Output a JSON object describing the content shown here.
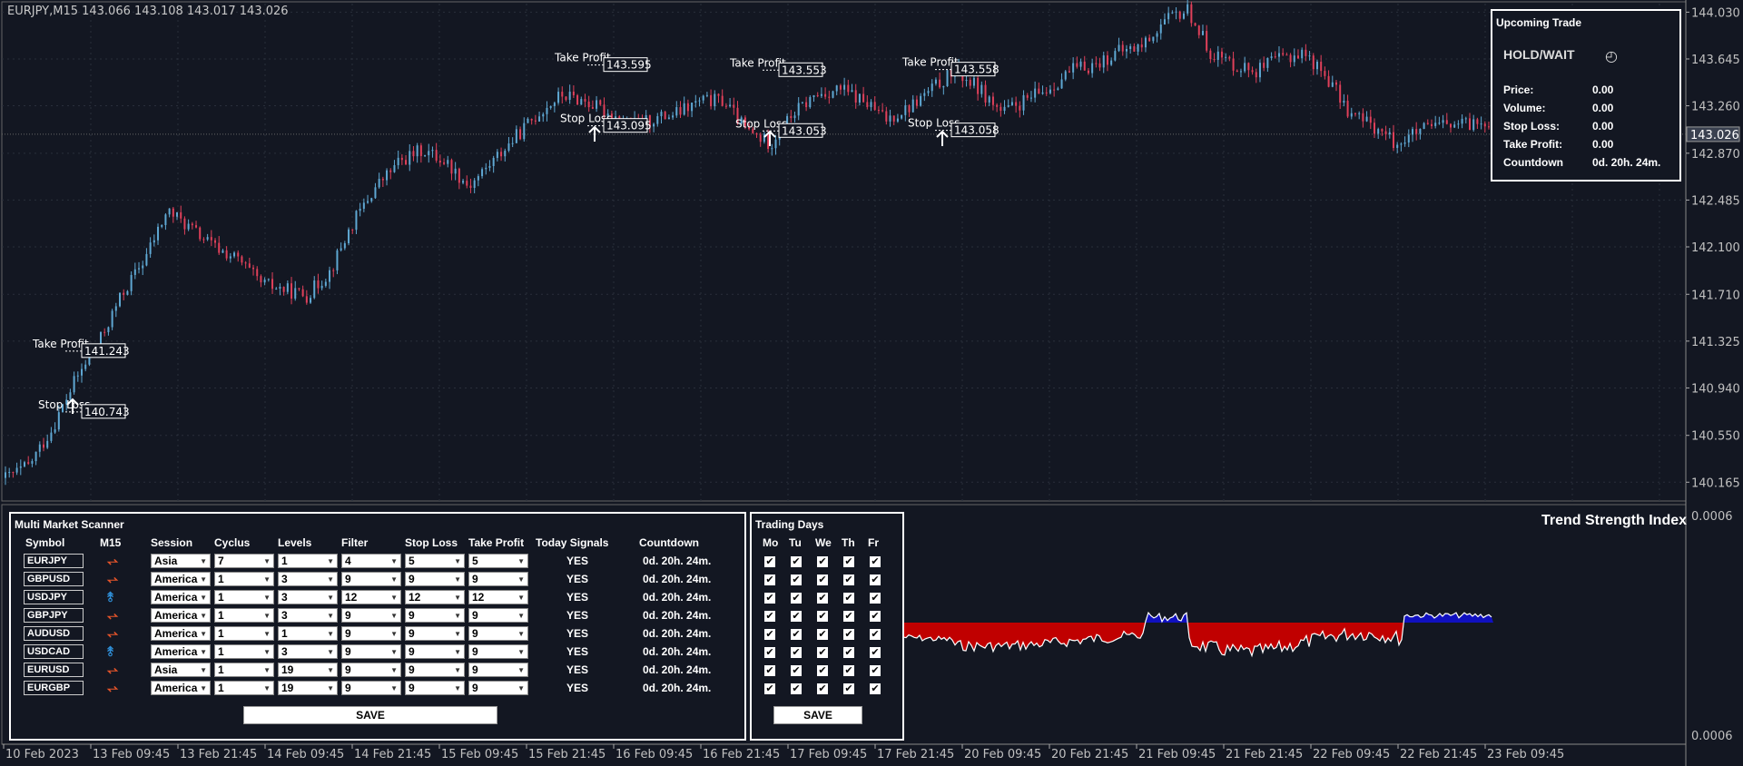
{
  "window": {
    "title": "EURJPY,M15  143.066 143.108 143.017 143.026"
  },
  "colors": {
    "background": "#131722",
    "bull": "#5fa8d3",
    "bear": "#e0405a",
    "tsi_neg": "#c00000",
    "tsi_pos": "#1010c0"
  },
  "price_axis": {
    "labels": [
      "144.030",
      "143.645",
      "143.260",
      "142.870",
      "142.485",
      "142.100",
      "141.710",
      "141.325",
      "140.940",
      "140.550",
      "140.165"
    ],
    "current_price": "143.026"
  },
  "indicator_axis": {
    "top": "0.0006",
    "bottom": "0.0006"
  },
  "time_axis": {
    "labels": [
      "10 Feb 2023",
      "13 Feb 09:45",
      "13 Feb 21:45",
      "14 Feb 09:45",
      "14 Feb 21:45",
      "15 Feb 09:45",
      "15 Feb 21:45",
      "16 Feb 09:45",
      "16 Feb 21:45",
      "17 Feb 09:45",
      "17 Feb 21:45",
      "20 Feb 09:45",
      "20 Feb 21:45",
      "21 Feb 09:45",
      "21 Feb 21:45",
      "22 Feb 09:45",
      "22 Feb 21:45",
      "23 Feb 09:45"
    ]
  },
  "chart_data": {
    "type": "candlestick",
    "symbol": "EURJPY",
    "timeframe": "M15",
    "ylim": [
      140.1,
      144.1
    ],
    "path_close": [
      140.2,
      140.3,
      140.6,
      141.0,
      141.3,
      141.7,
      142.0,
      142.4,
      142.25,
      142.1,
      142.0,
      141.8,
      141.75,
      141.7,
      141.9,
      142.3,
      142.6,
      142.8,
      142.9,
      142.8,
      142.6,
      142.8,
      143.0,
      143.2,
      143.35,
      143.3,
      143.2,
      143.1,
      143.15,
      143.2,
      143.3,
      143.3,
      143.05,
      142.95,
      143.2,
      143.35,
      143.4,
      143.3,
      143.15,
      143.25,
      143.4,
      143.55,
      143.4,
      143.2,
      143.3,
      143.4,
      143.55,
      143.6,
      143.7,
      143.75,
      143.95,
      144.05,
      143.7,
      143.6,
      143.55,
      143.65,
      143.7,
      143.5,
      143.2,
      143.1,
      142.95,
      143.05,
      143.1,
      143.1,
      143.15
    ]
  },
  "trade_markers": [
    {
      "take_profit_label": "Take Profit",
      "take_profit": "141.243",
      "stop_loss_label": "Stop Loss",
      "stop_loss": "140.743"
    },
    {
      "take_profit_label": "Take Profit",
      "take_profit": "143.595",
      "stop_loss_label": "Stop Loss",
      "stop_loss": "143.095"
    },
    {
      "take_profit_label": "Take Profit",
      "take_profit": "143.553",
      "stop_loss_label": "Stop Loss",
      "stop_loss": "143.053"
    },
    {
      "take_profit_label": "Take Profit",
      "take_profit": "143.558",
      "stop_loss_label": "Stop Loss",
      "stop_loss": "143.058"
    }
  ],
  "upcoming_trade": {
    "title": "Upcoming Trade",
    "status": "HOLD/WAIT",
    "rows": [
      {
        "label": "Price:",
        "value": "0.00"
      },
      {
        "label": "Volume:",
        "value": "0.00"
      },
      {
        "label": "Stop Loss:",
        "value": "0.00"
      },
      {
        "label": "Take Profit:",
        "value": "0.00"
      },
      {
        "label": "Countdown",
        "value": "0d. 20h. 24m."
      }
    ]
  },
  "scanner": {
    "title": "Multi Market Scanner",
    "headers": [
      "Symbol",
      "M15",
      "Session",
      "Cyclus",
      "Levels",
      "Filter",
      "Stop Loss",
      "Take Profit",
      "Today Signals",
      "Countdown"
    ],
    "rows": [
      {
        "symbol": "EURJPY",
        "dir": "down",
        "session": "Asia",
        "cyclus": "7",
        "levels": "1",
        "filter": "4",
        "stop_loss": "5",
        "take_profit": "5",
        "signals": "YES",
        "countdown": "0d. 20h. 24m."
      },
      {
        "symbol": "GBPUSD",
        "dir": "down",
        "session": "America",
        "cyclus": "1",
        "levels": "3",
        "filter": "9",
        "stop_loss": "9",
        "take_profit": "9",
        "signals": "YES",
        "countdown": "0d. 20h. 24m."
      },
      {
        "symbol": "USDJPY",
        "dir": "up",
        "session": "America",
        "cyclus": "1",
        "levels": "3",
        "filter": "12",
        "stop_loss": "12",
        "take_profit": "12",
        "signals": "YES",
        "countdown": "0d. 20h. 24m."
      },
      {
        "symbol": "GBPJPY",
        "dir": "down",
        "session": "America",
        "cyclus": "1",
        "levels": "3",
        "filter": "9",
        "stop_loss": "9",
        "take_profit": "9",
        "signals": "YES",
        "countdown": "0d. 20h. 24m."
      },
      {
        "symbol": "AUDUSD",
        "dir": "down",
        "session": "America",
        "cyclus": "1",
        "levels": "1",
        "filter": "9",
        "stop_loss": "9",
        "take_profit": "9",
        "signals": "YES",
        "countdown": "0d. 20h. 24m."
      },
      {
        "symbol": "USDCAD",
        "dir": "up",
        "session": "America",
        "cyclus": "1",
        "levels": "3",
        "filter": "9",
        "stop_loss": "9",
        "take_profit": "9",
        "signals": "YES",
        "countdown": "0d. 20h. 24m."
      },
      {
        "symbol": "EURUSD",
        "dir": "down",
        "session": "Asia",
        "cyclus": "1",
        "levels": "19",
        "filter": "9",
        "stop_loss": "9",
        "take_profit": "9",
        "signals": "YES",
        "countdown": "0d. 20h. 24m."
      },
      {
        "symbol": "EURGBP",
        "dir": "down",
        "session": "America",
        "cyclus": "1",
        "levels": "19",
        "filter": "9",
        "stop_loss": "9",
        "take_profit": "9",
        "signals": "YES",
        "countdown": "0d. 20h. 24m."
      }
    ],
    "save_label": "SAVE"
  },
  "trading_days": {
    "title": "Trading Days",
    "days": [
      "Mo",
      "Tu",
      "We",
      "Th",
      "Fr"
    ],
    "rows": 8,
    "checked": true,
    "save_label": "SAVE"
  },
  "tsi": {
    "title": "Trend Strength Index"
  }
}
